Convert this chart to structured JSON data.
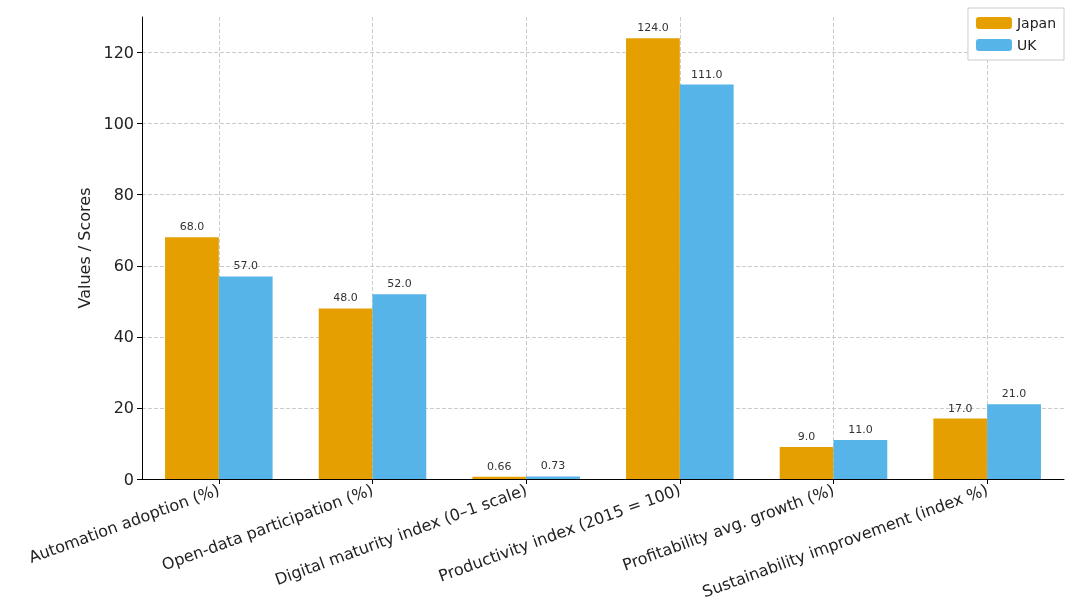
{
  "chart_data": {
    "type": "bar",
    "ylabel": "Values / Scores",
    "categories": [
      "Automation adoption (%)",
      "Open-data participation (%)",
      "Digital maturity index (0–1 scale)",
      "Productivity index (2015 = 100)",
      "Profitability avg. growth (%)",
      "Sustainability improvement (index %)"
    ],
    "series": [
      {
        "name": "Japan",
        "color": "#e69f00",
        "values": [
          68,
          48,
          0.66,
          124,
          9,
          17
        ],
        "value_labels": [
          "68.0",
          "48.0",
          "0.66",
          "124.0",
          "9.0",
          "17.0"
        ]
      },
      {
        "name": "UK",
        "color": "#56b4e9",
        "values": [
          57,
          52,
          0.73,
          111,
          11,
          21
        ],
        "value_labels": [
          "57.0",
          "52.0",
          "0.73",
          "111.0",
          "11.0",
          "21.0"
        ]
      }
    ],
    "ylim": [
      0,
      130
    ],
    "yticks": [
      0,
      20,
      40,
      60,
      80,
      100,
      120
    ],
    "grid": true,
    "legend": "top right"
  }
}
